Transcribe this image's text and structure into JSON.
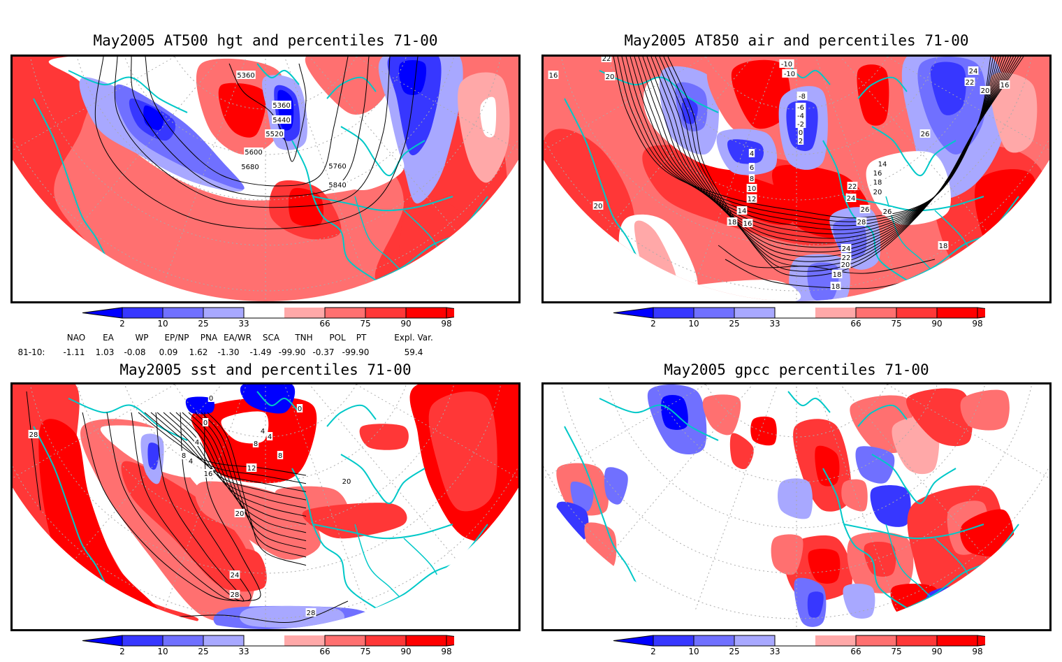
{
  "figure": {
    "panels": [
      {
        "id": "hgt500",
        "title": "May2005 AT500 hgt and percentiles 71-00",
        "contour_labels": [
          "5360",
          "5360",
          "5440",
          "5520",
          "5600",
          "5680",
          "5760",
          "5840"
        ]
      },
      {
        "id": "air850",
        "title": "May2005 AT850 air and percentiles 71-00",
        "contour_labels": [
          "22",
          "16",
          "20",
          "-10",
          "-10",
          "-8",
          "-6",
          "-4",
          "-2",
          "0",
          "2",
          "4",
          "6",
          "8",
          "10",
          "12",
          "14",
          "16",
          "18",
          "14",
          "16",
          "18",
          "20",
          "22",
          "24",
          "26",
          "28",
          "26",
          "24",
          "22",
          "20",
          "18",
          "18",
          "20",
          "18",
          "26",
          "24",
          "22",
          "20",
          "16"
        ]
      },
      {
        "id": "sst",
        "title": "May2005 sst and percentiles 71-00",
        "contour_labels": [
          "28",
          "0",
          "0",
          "0",
          "4",
          "4",
          "4",
          "8",
          "8",
          "8",
          "4",
          "12",
          "16",
          "20",
          "24",
          "28",
          "28",
          "20"
        ]
      },
      {
        "id": "gpcc",
        "title": "May2005 gpcc percentiles 71-00",
        "contour_labels": []
      }
    ],
    "colorbar": {
      "ticks": [
        "2",
        "10",
        "25",
        "33",
        "66",
        "75",
        "90",
        "98"
      ],
      "colors": [
        "#0000ff",
        "#3737ff",
        "#7070ff",
        "#a8a8ff",
        "#ffffff",
        "#ffa8a8",
        "#ff7070",
        "#ff3737",
        "#ff0000"
      ]
    },
    "teleconnections": {
      "headers": [
        "NAO",
        "EA",
        "WP",
        "EP/NP",
        "PNA",
        "EA/WR",
        "SCA",
        "TNH",
        "POL",
        "PT",
        "Expl. Var."
      ],
      "row_label": "81-10:",
      "values": [
        "-1.11",
        "1.03",
        "-0.08",
        "0.09",
        "1.62",
        "-1.30",
        "-1.49",
        "-99.90",
        "-0.37",
        "-99.90",
        "59.4"
      ]
    },
    "coast_color": "#00c8c8"
  },
  "chart_data": [
    {
      "type": "heatmap",
      "title": "May2005 AT500 hgt and percentiles 71-00",
      "field": "500 hPa geopotential height percentiles",
      "contours": [
        5360,
        5440,
        5520,
        5600,
        5680,
        5760,
        5840
      ],
      "legend_ticks": [
        2,
        10,
        25,
        33,
        66,
        75,
        90,
        98
      ],
      "legend": "bottom"
    },
    {
      "type": "heatmap",
      "title": "May2005 AT850 air and percentiles 71-00",
      "field": "850 hPa air temperature percentiles",
      "contours": [
        -10,
        -8,
        -6,
        -4,
        -2,
        0,
        2,
        4,
        6,
        8,
        10,
        12,
        14,
        16,
        18,
        20,
        22,
        24,
        26,
        28
      ],
      "legend_ticks": [
        2,
        10,
        25,
        33,
        66,
        75,
        90,
        98
      ],
      "legend": "bottom"
    },
    {
      "type": "heatmap",
      "title": "May2005 sst and percentiles 71-00",
      "field": "sea surface temperature percentiles",
      "contours": [
        0,
        4,
        8,
        12,
        16,
        20,
        24,
        28
      ],
      "legend_ticks": [
        2,
        10,
        25,
        33,
        66,
        75,
        90,
        98
      ],
      "legend": "bottom"
    },
    {
      "type": "heatmap",
      "title": "May2005 gpcc percentiles 71-00",
      "field": "GPCC precipitation percentiles",
      "contours": [],
      "legend_ticks": [
        2,
        10,
        25,
        33,
        66,
        75,
        90,
        98
      ],
      "legend": "bottom"
    }
  ]
}
